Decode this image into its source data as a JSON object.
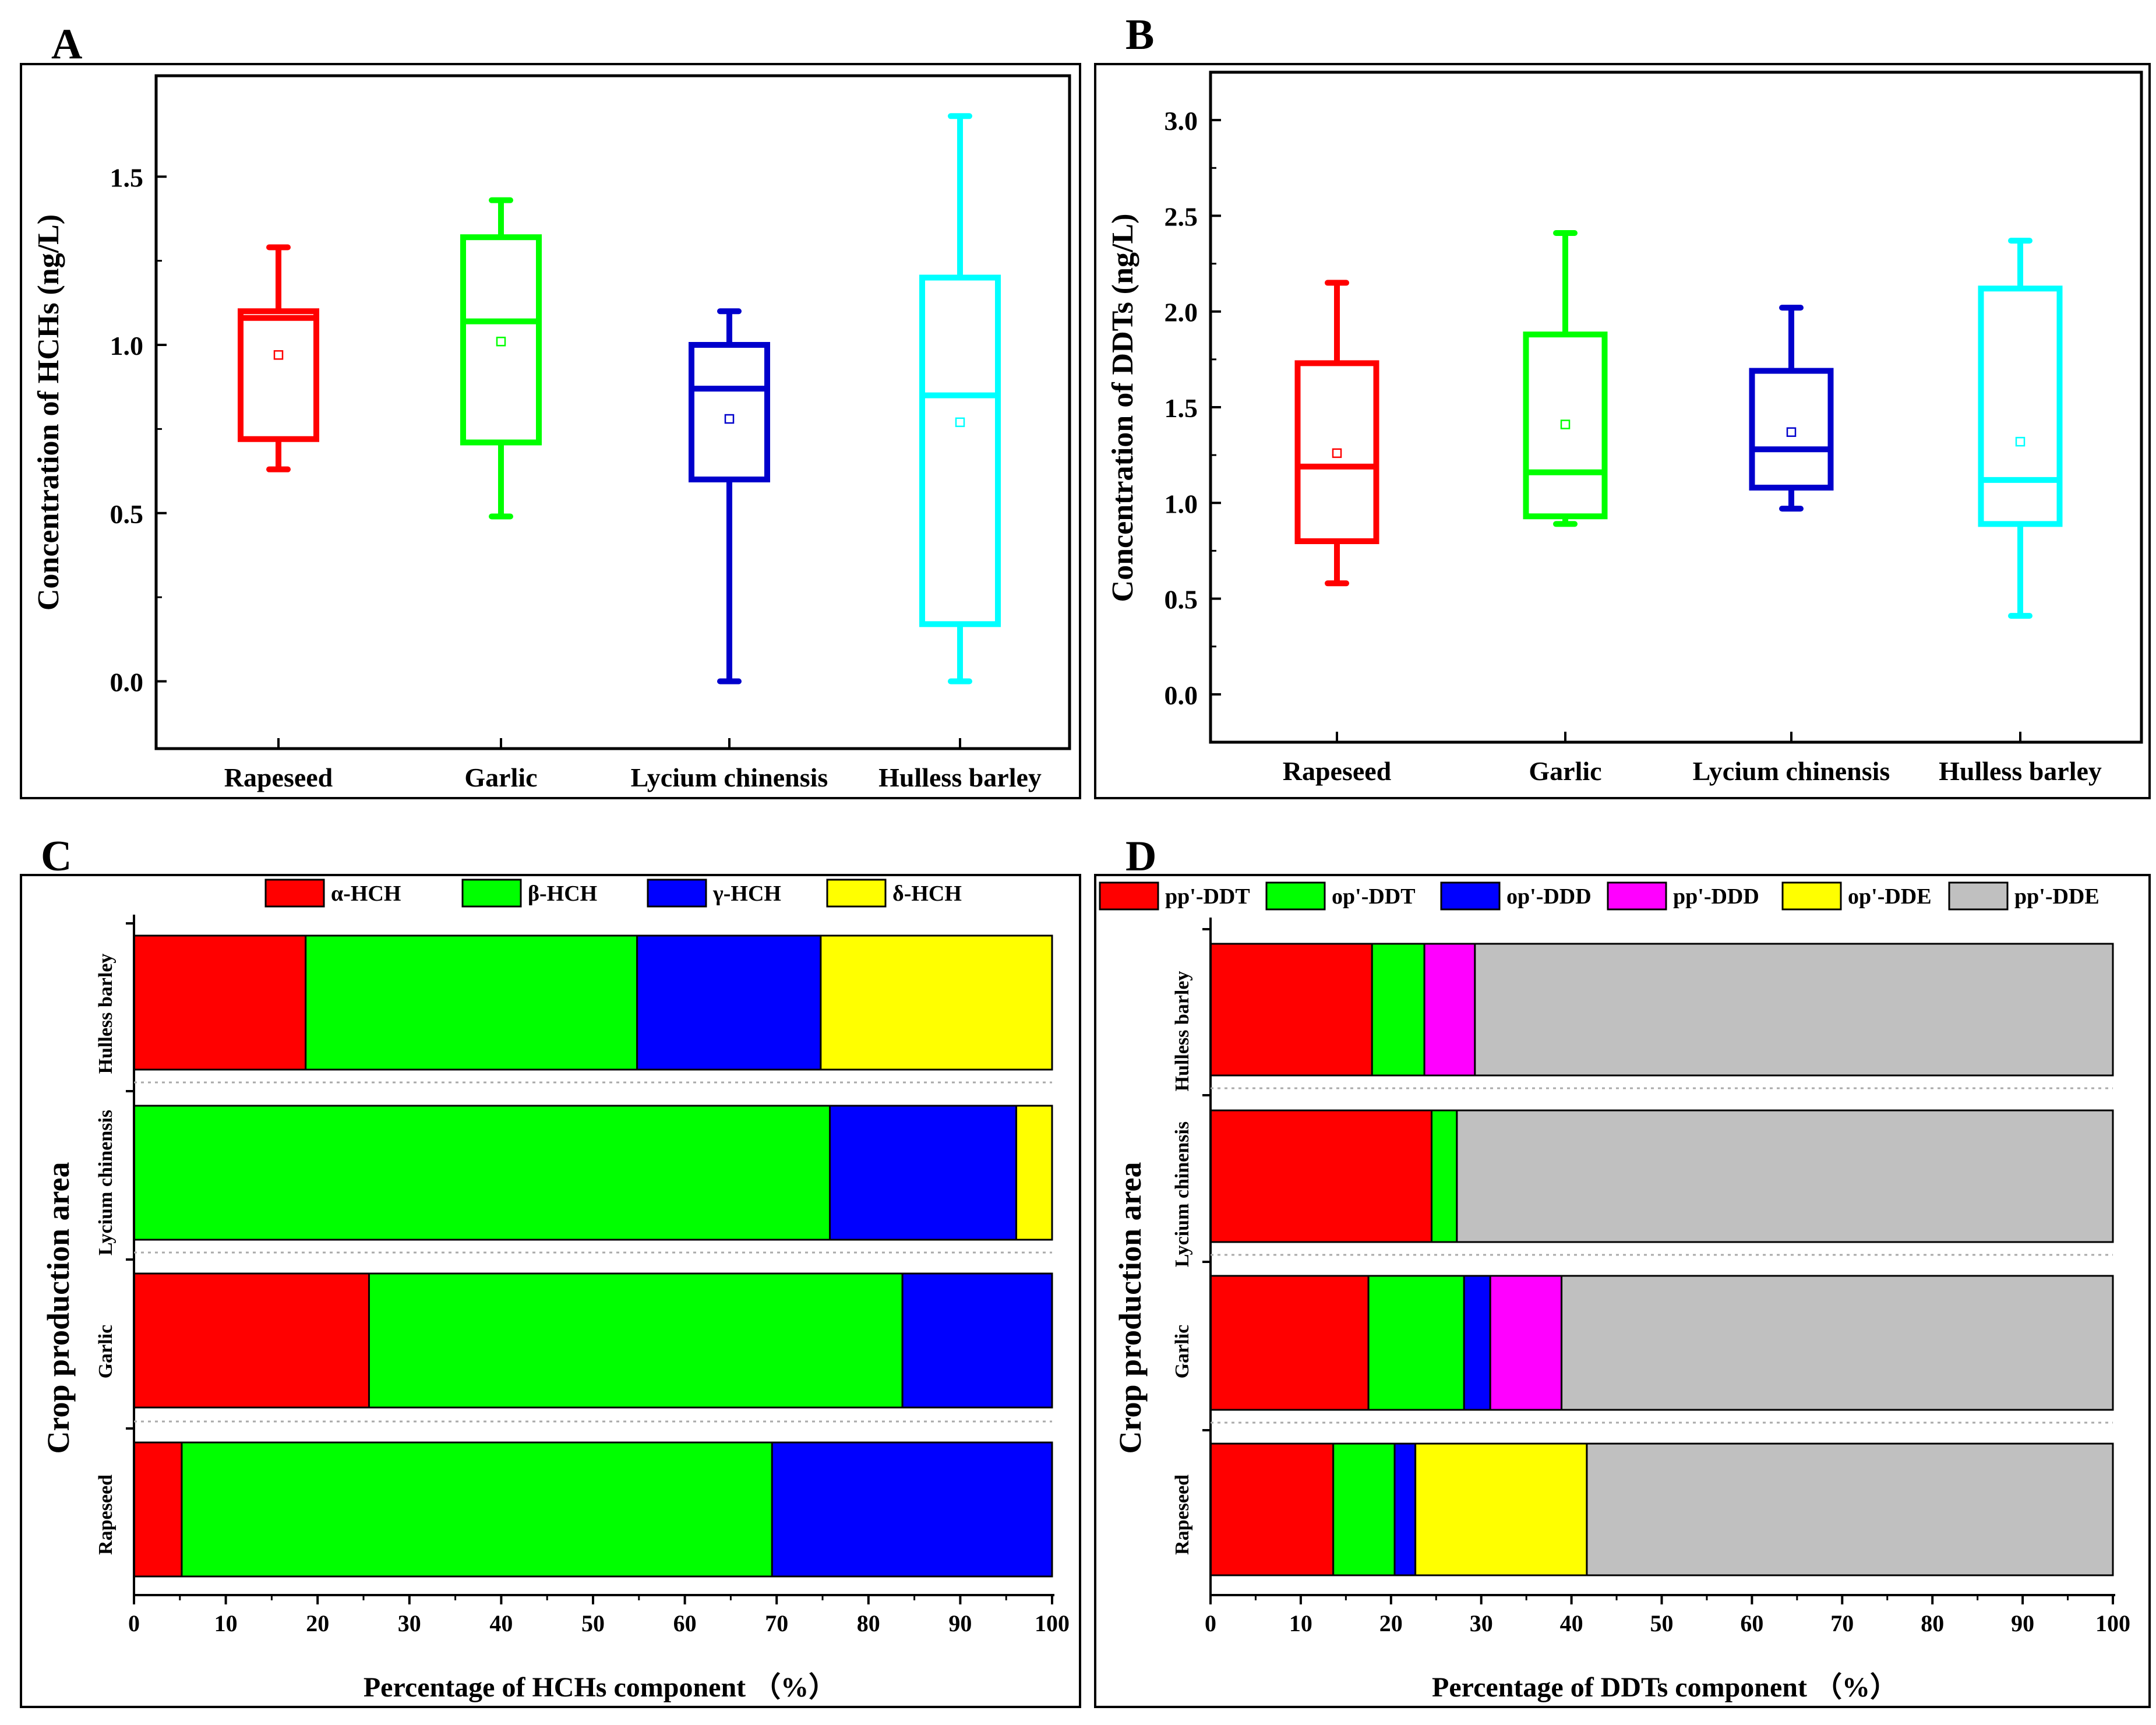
{
  "chart_data": [
    {
      "panel": "A",
      "type": "box",
      "ylabel": "Concentration of HCHs (ng/L)",
      "ylim": [
        -0.2,
        1.8
      ],
      "yticks": [
        0.0,
        0.5,
        1.0,
        1.5
      ],
      "ytick_labels": [
        "0.0",
        "0.5",
        "1.0",
        "1.5"
      ],
      "categories": [
        "Rapeseed",
        "Garlic",
        "Lycium chinensis",
        "Hulless barley"
      ],
      "colors": [
        "#ff0000",
        "#00ff00",
        "#0000cc",
        "#00ffff"
      ],
      "boxes": [
        {
          "min": 0.63,
          "q1": 0.72,
          "median": 1.08,
          "q3": 1.1,
          "max": 1.29,
          "mean": 0.97
        },
        {
          "min": 0.49,
          "q1": 0.71,
          "median": 1.07,
          "q3": 1.32,
          "max": 1.43,
          "mean": 1.01
        },
        {
          "min": 0.0,
          "q1": 0.6,
          "median": 0.87,
          "q3": 1.0,
          "max": 1.1,
          "mean": 0.78
        },
        {
          "min": 0.0,
          "q1": 0.17,
          "median": 0.85,
          "q3": 1.2,
          "max": 1.68,
          "mean": 0.77
        }
      ]
    },
    {
      "panel": "B",
      "type": "box",
      "ylabel": "Concentration of DDTs (ng/L)",
      "ylim": [
        -0.25,
        3.25
      ],
      "yticks": [
        0.0,
        0.5,
        1.0,
        1.5,
        2.0,
        2.5,
        3.0
      ],
      "ytick_labels": [
        "0.0",
        "0.5",
        "1.0",
        "1.5",
        "2.0",
        "2.5",
        "3.0"
      ],
      "categories": [
        "Rapeseed",
        "Garlic",
        "Lycium chinensis",
        "Hulless barley"
      ],
      "colors": [
        "#ff0000",
        "#00ff00",
        "#0000cc",
        "#00ffff"
      ],
      "boxes": [
        {
          "min": 0.58,
          "q1": 0.8,
          "median": 1.19,
          "q3": 1.73,
          "max": 2.15,
          "mean": 1.26
        },
        {
          "min": 0.89,
          "q1": 0.93,
          "median": 1.16,
          "q3": 1.88,
          "max": 2.41,
          "mean": 1.41
        },
        {
          "min": 0.97,
          "q1": 1.08,
          "median": 1.28,
          "q3": 1.69,
          "max": 2.02,
          "mean": 1.37
        },
        {
          "min": 0.41,
          "q1": 0.89,
          "median": 1.12,
          "q3": 2.12,
          "max": 2.37,
          "mean": 1.32
        }
      ]
    },
    {
      "panel": "C",
      "type": "bar",
      "stacked": true,
      "orientation": "horizontal",
      "xlabel": "Percentage of HCHs component （%）",
      "ylabel": "Crop production area",
      "xlim": [
        0,
        100
      ],
      "xticks": [
        0,
        10,
        20,
        30,
        40,
        50,
        60,
        70,
        80,
        90,
        100
      ],
      "categories": [
        "Hulless barley",
        "Lycium chinensis",
        "Garlic",
        "Rapeseed"
      ],
      "series": [
        {
          "name": "α-HCH",
          "color": "#ff0000",
          "values": [
            18.7,
            0,
            25.6,
            5.2
          ]
        },
        {
          "name": "β-HCH",
          "color": "#00ff00",
          "values": [
            36.1,
            75.8,
            58.1,
            64.3
          ]
        },
        {
          "name": "γ-HCH",
          "color": "#0000ff",
          "values": [
            20.0,
            20.3,
            16.3,
            30.5
          ]
        },
        {
          "name": "δ-HCH",
          "color": "#ffff00",
          "values": [
            25.2,
            3.9,
            0,
            0
          ]
        }
      ]
    },
    {
      "panel": "D",
      "type": "bar",
      "stacked": true,
      "orientation": "horizontal",
      "xlabel": "Percentage of DDTs component （%）",
      "ylabel": "Crop production area",
      "xlim": [
        0,
        100
      ],
      "xticks": [
        0,
        10,
        20,
        30,
        40,
        50,
        60,
        70,
        80,
        90,
        100
      ],
      "categories": [
        "Hulless barley",
        "Lycium chinensis",
        "Garlic",
        "Rapeseed"
      ],
      "series": [
        {
          "name": "pp'-DDT",
          "color": "#ff0000",
          "values": [
            17.9,
            24.5,
            17.5,
            13.6
          ]
        },
        {
          "name": "op'-DDT",
          "color": "#00ff00",
          "values": [
            5.8,
            2.8,
            10.6,
            6.8
          ]
        },
        {
          "name": "op'-DDD",
          "color": "#0000ff",
          "values": [
            0,
            0,
            2.9,
            2.3
          ]
        },
        {
          "name": "pp'-DDD",
          "color": "#ff00ff",
          "values": [
            5.6,
            0,
            7.9,
            0
          ]
        },
        {
          "name": "op'-DDE",
          "color": "#ffff00",
          "values": [
            0,
            0,
            0,
            19.0
          ]
        },
        {
          "name": "pp'-DDE",
          "color": "#c0c0c0",
          "values": [
            70.7,
            72.7,
            61.1,
            58.3
          ]
        }
      ]
    }
  ]
}
